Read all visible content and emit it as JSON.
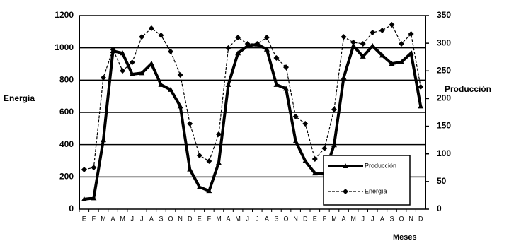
{
  "chart_data": {
    "type": "line",
    "x_label": "Meses",
    "y_label": "Energía",
    "y2_label": "Producción",
    "categories": [
      "E",
      "F",
      "M",
      "A",
      "M",
      "J",
      "J",
      "A",
      "S",
      "O",
      "N",
      "D",
      "E",
      "F",
      "M",
      "A",
      "M",
      "J",
      "J",
      "A",
      "S",
      "O",
      "N",
      "D",
      "E",
      "F",
      "M",
      "A",
      "M",
      "J",
      "J",
      "A",
      "S",
      "O",
      "N",
      "D"
    ],
    "series": [
      {
        "name": "Producción",
        "color": "#000000",
        "axis": "y2",
        "style": "solid",
        "marker": "triangle",
        "values": [
          18,
          20,
          125,
          286,
          282,
          244,
          246,
          263,
          225,
          216,
          186,
          72,
          40,
          33,
          84,
          225,
          282,
          295,
          298,
          289,
          225,
          218,
          123,
          87,
          65,
          65,
          116,
          238,
          295,
          276,
          295,
          278,
          263,
          266,
          282,
          186
        ]
      },
      {
        "name": "Energía",
        "color": "#000000",
        "style": "dashed",
        "marker": "diamond",
        "values": [
          245,
          258,
          815,
          990,
          858,
          910,
          1068,
          1121,
          1078,
          977,
          832,
          530,
          333,
          298,
          464,
          999,
          1064,
          1025,
          1025,
          1064,
          937,
          880,
          574,
          530,
          311,
          377,
          618,
          1068,
          1034,
          1025,
          1095,
          1108,
          1143,
          1025,
          1086,
          758
        ]
      }
    ],
    "ylim": [
      0,
      1200
    ],
    "yticks": [
      0,
      200,
      400,
      600,
      800,
      1000,
      1200
    ],
    "y2lim": [
      0,
      350
    ],
    "y2ticks": [
      0,
      50,
      100,
      150,
      200,
      250,
      300,
      350
    ],
    "grid": true,
    "legend": "lower right"
  }
}
